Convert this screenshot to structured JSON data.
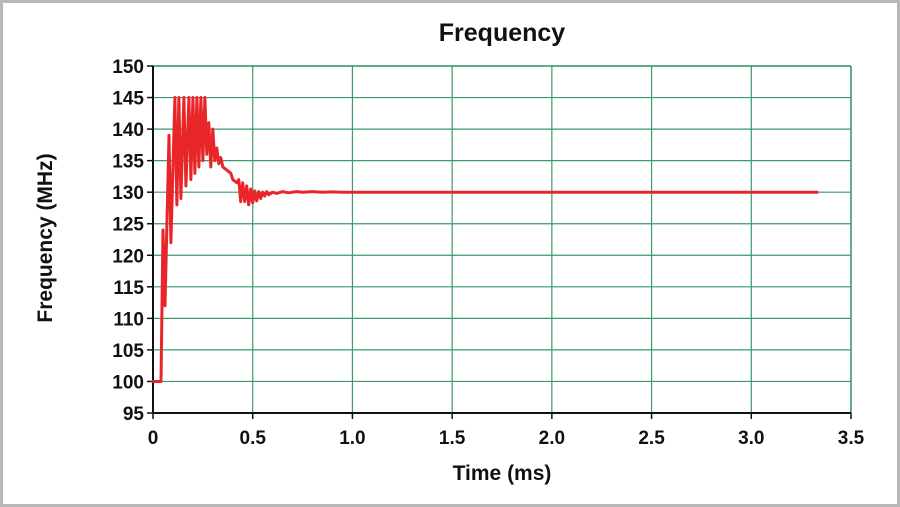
{
  "chart_data": {
    "type": "line",
    "title": "Frequency",
    "xlabel": "Time (ms)",
    "ylabel": "Frequency (MHz)",
    "xlim": [
      0,
      3.5
    ],
    "ylim": [
      95,
      150
    ],
    "x_ticks": [
      0,
      0.5,
      1.0,
      1.5,
      2.0,
      2.5,
      3.0,
      3.5
    ],
    "x_tick_labels": [
      "0",
      "0.5",
      "1.0",
      "1.5",
      "2.0",
      "2.5",
      "3.0",
      "3.5"
    ],
    "y_ticks": [
      95,
      100,
      105,
      110,
      115,
      120,
      125,
      130,
      135,
      140,
      145,
      150
    ],
    "y_tick_labels": [
      "95",
      "100",
      "105",
      "110",
      "115",
      "120",
      "125",
      "130",
      "135",
      "140",
      "145",
      "150"
    ],
    "grid": true,
    "legend": "none",
    "colors": {
      "series": "#e8262a",
      "grid": "#3a9a68",
      "axes": "#111111"
    },
    "series": [
      {
        "x": [
          0,
          0.04,
          0.05,
          0.06,
          0.08,
          0.09,
          0.11,
          0.12,
          0.13,
          0.14,
          0.155,
          0.165,
          0.18,
          0.19,
          0.2,
          0.21,
          0.22,
          0.23,
          0.24,
          0.25,
          0.26,
          0.27,
          0.28,
          0.29,
          0.3,
          0.31,
          0.32,
          0.33,
          0.34,
          0.35,
          0.37,
          0.39,
          0.4,
          0.42,
          0.43,
          0.44,
          0.45,
          0.46,
          0.47,
          0.48,
          0.49,
          0.5,
          0.51,
          0.52,
          0.53,
          0.54,
          0.55,
          0.56,
          0.57,
          0.58,
          0.6,
          0.62,
          0.65,
          0.68,
          0.72,
          0.75,
          0.8,
          0.85,
          0.9,
          0.95,
          1.0,
          3.33
        ],
        "y": [
          100,
          100,
          124,
          112,
          139,
          122,
          145,
          128,
          145,
          129,
          145,
          131,
          145,
          132,
          145,
          133,
          145,
          134,
          145,
          135,
          145,
          136,
          141,
          134,
          140,
          135,
          137,
          134.5,
          135.5,
          134,
          133.5,
          133,
          132,
          131.5,
          132,
          128.5,
          131.5,
          128.5,
          131,
          128,
          130.5,
          128.3,
          130.2,
          128.6,
          130.1,
          129,
          130,
          129.4,
          130.1,
          129.6,
          130,
          129.8,
          130.1,
          129.9,
          130.1,
          130,
          130.1,
          130,
          130.05,
          130,
          130,
          130
        ]
      }
    ]
  }
}
